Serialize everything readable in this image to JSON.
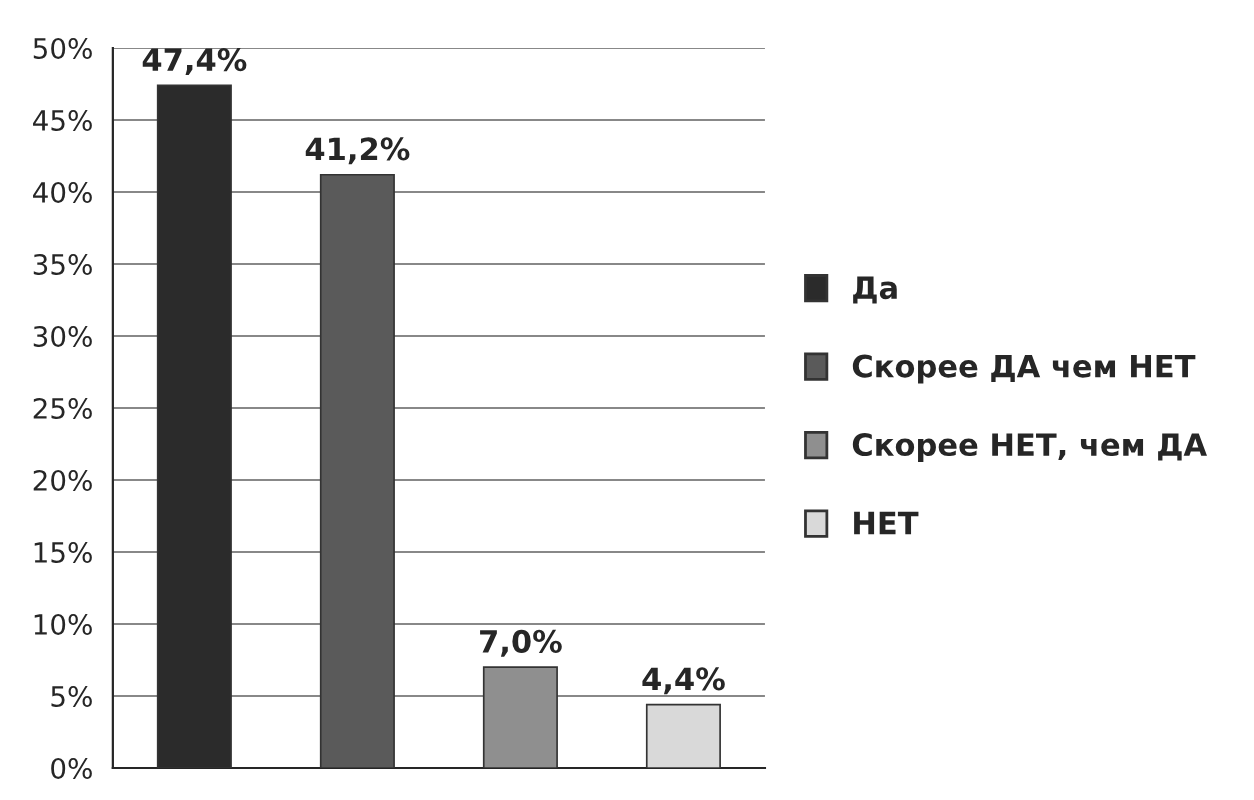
{
  "chart_data": {
    "type": "bar",
    "categories": [
      null,
      null,
      null,
      null
    ],
    "series": [
      {
        "name": "Да",
        "color": "#2b2b2b",
        "values": [
          47.4,
          null,
          null,
          null
        ],
        "value_labels": [
          "47,4%",
          null,
          null,
          null
        ]
      },
      {
        "name": "Скорее ДА чем НЕТ",
        "color": "#5a5a5a",
        "values": [
          null,
          41.2,
          null,
          null
        ],
        "value_labels": [
          null,
          "41,2%",
          null,
          null
        ]
      },
      {
        "name": "Скорее НЕТ, чем ДА",
        "color": "#8f8f8f",
        "values": [
          null,
          null,
          7.0,
          null
        ],
        "value_labels": [
          null,
          null,
          "7,0%",
          null
        ]
      },
      {
        "name": "НЕТ",
        "color": "#d9d9d9",
        "values": [
          null,
          null,
          null,
          4.4
        ],
        "value_labels": [
          null,
          null,
          null,
          "4,4%"
        ]
      }
    ],
    "ylim": [
      0,
      50
    ],
    "yticks": [
      {
        "value": 0,
        "label": "0%"
      },
      {
        "value": 5,
        "label": "5%"
      },
      {
        "value": 10,
        "label": "10%"
      },
      {
        "value": 15,
        "label": "15%"
      },
      {
        "value": 20,
        "label": "20%"
      },
      {
        "value": 25,
        "label": "25%"
      },
      {
        "value": 30,
        "label": "30%"
      },
      {
        "value": 35,
        "label": "35%"
      },
      {
        "value": 40,
        "label": "40%"
      },
      {
        "value": 45,
        "label": "45%"
      },
      {
        "value": 50,
        "label": "50%"
      }
    ],
    "grid": "y",
    "legend": "right"
  }
}
